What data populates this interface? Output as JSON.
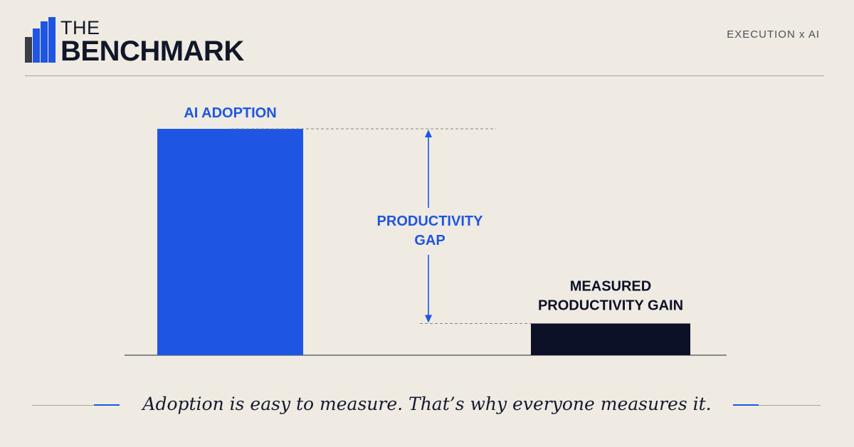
{
  "brand": {
    "line1": "THE",
    "line2": "BENCHMARK",
    "bar_colors": [
      "#3a3d45",
      "#1f55e3",
      "#1f55e3",
      "#1f55e3"
    ]
  },
  "tagline": "EXECUTION x AI",
  "chart_data": {
    "type": "bar",
    "title": "",
    "xlabel": "",
    "ylabel": "",
    "categories": [
      "AI ADOPTION",
      "MEASURED\nPRODUCTIVITY GAIN"
    ],
    "values": [
      100,
      14
    ],
    "colors": [
      "#1f55e3",
      "#0c1127"
    ],
    "ylim": [
      0,
      100
    ],
    "grid": false,
    "annotations": [
      {
        "text": "PRODUCTIVITY\nGAP",
        "type": "double-arrow",
        "from": 14,
        "to": 100,
        "color": "#1f55e3"
      }
    ]
  },
  "caption": "Adoption is easy to measure. That’s why everyone measures it.",
  "accent_color": "#1f55e3"
}
